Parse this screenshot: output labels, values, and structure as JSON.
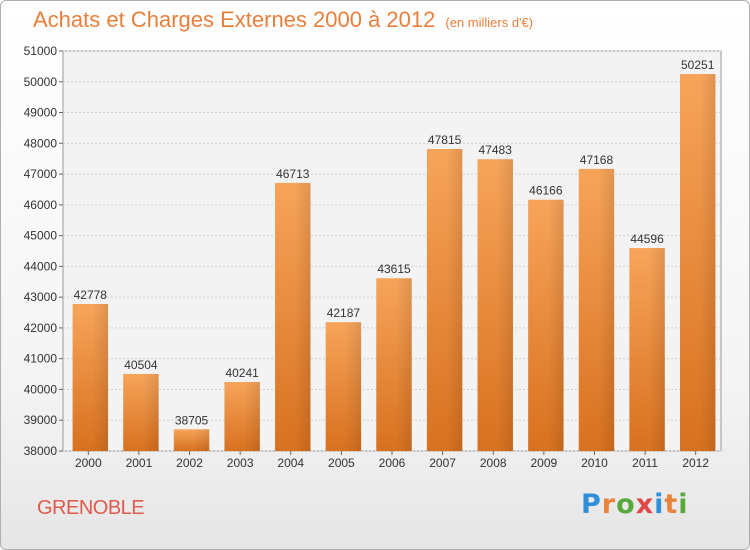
{
  "header": {
    "title": "Achats et Charges Externes 2000 à 2012",
    "subtitle": "(en milliers d'€)"
  },
  "footer": {
    "city": "GRENOBLE",
    "brand_letters": [
      "P",
      "r",
      "o",
      "x",
      "i",
      "t",
      "i"
    ],
    "brand_colors": [
      "#2f8fd8",
      "#e8843c",
      "#58a83c",
      "#e04848",
      "#2f8fd8",
      "#e8843c",
      "#58a83c"
    ]
  },
  "chart_data": {
    "type": "bar",
    "categories": [
      "2000",
      "2001",
      "2002",
      "2003",
      "2004",
      "2005",
      "2006",
      "2007",
      "2008",
      "2009",
      "2010",
      "2011",
      "2012"
    ],
    "values": [
      42778,
      40504,
      38705,
      40241,
      46713,
      42187,
      43615,
      47815,
      47483,
      46166,
      47168,
      44596,
      50251
    ],
    "title": "Achats et Charges Externes 2000 à 2012",
    "ylim": [
      38000,
      51000
    ],
    "yticks": [
      38000,
      39000,
      40000,
      41000,
      42000,
      43000,
      44000,
      45000,
      46000,
      47000,
      48000,
      49000,
      50000,
      51000
    ],
    "grid": true,
    "bar_color": "#f0923e"
  }
}
